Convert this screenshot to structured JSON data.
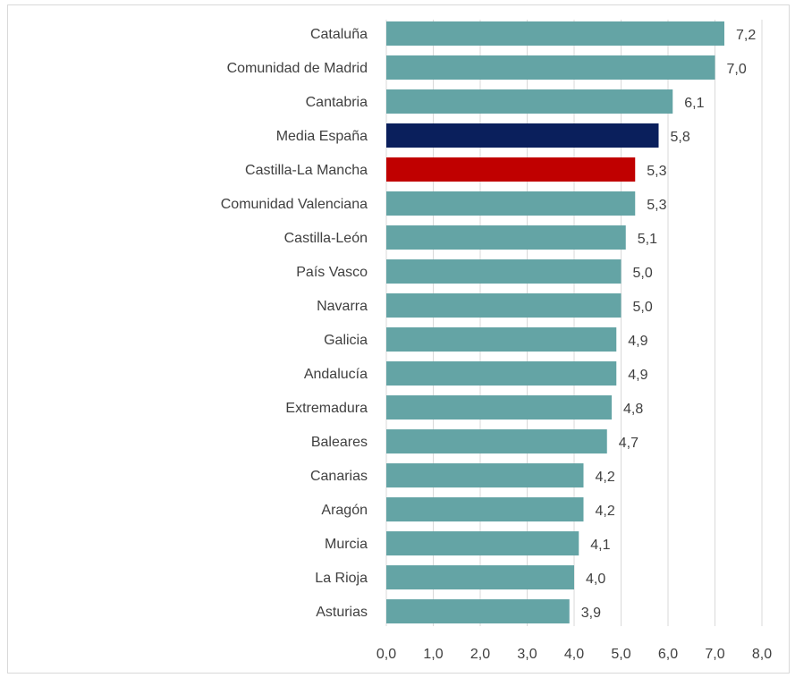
{
  "chart_data": {
    "type": "bar",
    "orientation": "horizontal",
    "title": "",
    "xlabel": "",
    "ylabel": "",
    "categories": [
      "Cataluña",
      "Comunidad de Madrid",
      "Cantabria",
      "Media España",
      "Castilla-La Mancha",
      "Comunidad Valenciana",
      "Castilla-León",
      "País Vasco",
      "Navarra",
      "Galicia",
      "Andalucía",
      "Extremadura",
      "Baleares",
      "Canarias",
      "Aragón",
      "Murcia",
      "La Rioja",
      "Asturias"
    ],
    "values": [
      7.2,
      7.0,
      6.1,
      5.8,
      5.3,
      5.3,
      5.1,
      5.0,
      5.0,
      4.9,
      4.9,
      4.8,
      4.7,
      4.2,
      4.2,
      4.1,
      4.0,
      3.9
    ],
    "value_labels": [
      "7,2",
      "7,0",
      "6,1",
      "5,8",
      "5,3",
      "5,3",
      "5,1",
      "5,0",
      "5,0",
      "4,9",
      "4,9",
      "4,8",
      "4,7",
      "4,2",
      "4,2",
      "4,1",
      "4,0",
      "3,9"
    ],
    "xlim": [
      0,
      8
    ],
    "x_ticks": [
      0,
      1,
      2,
      3,
      4,
      5,
      6,
      7,
      8
    ],
    "x_tick_labels": [
      "0,0",
      "1,0",
      "2,0",
      "3,0",
      "4,0",
      "5,0",
      "6,0",
      "7,0",
      "8,0"
    ],
    "grid": "vertical",
    "legend": "none",
    "colors": {
      "default": "#64a4a5",
      "highlight_national": "#0a1f5c",
      "highlight_region": "#c00000",
      "gridline": "#d9d9d9",
      "text": "#404040"
    },
    "highlights": {
      "Media España": "highlight_national",
      "Castilla-La Mancha": "highlight_region"
    }
  }
}
